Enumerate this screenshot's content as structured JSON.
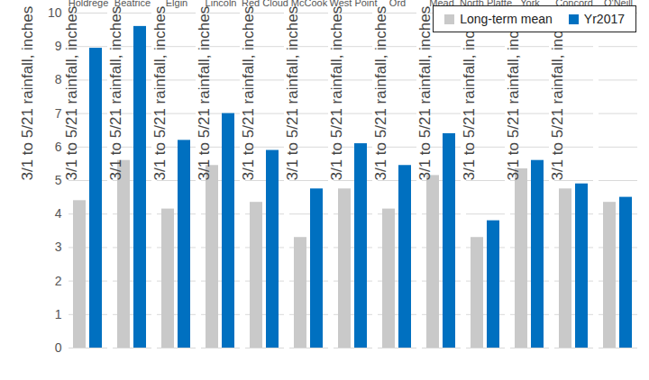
{
  "chart_data": {
    "type": "bar",
    "y_label": "3/1 to 5/21 rainfall, inches",
    "categories": [
      "Holdrege",
      "Beatrice",
      "Elgin",
      "Lincoln",
      "Red Cloud",
      "McCook",
      "West Point",
      "Ord",
      "Mead",
      "North Platte",
      "York",
      "Concord",
      "O'Neill"
    ],
    "series": [
      {
        "name": "Long-term mean",
        "color": "#c9c9c9",
        "values": [
          4.4,
          5.6,
          4.15,
          5.45,
          4.35,
          3.3,
          4.75,
          4.15,
          5.15,
          3.3,
          5.35,
          4.75,
          4.35
        ]
      },
      {
        "name": "Yr2017",
        "color": "#0070c0",
        "values": [
          8.95,
          9.6,
          6.2,
          7.0,
          5.9,
          4.75,
          6.1,
          5.45,
          6.4,
          3.8,
          5.6,
          4.9,
          4.5
        ]
      }
    ],
    "ylim": [
      0,
      10
    ],
    "yticks": [
      0,
      1,
      2,
      3,
      4,
      5,
      6,
      7,
      8,
      9,
      10
    ],
    "grid": true,
    "legend": "top-right"
  }
}
